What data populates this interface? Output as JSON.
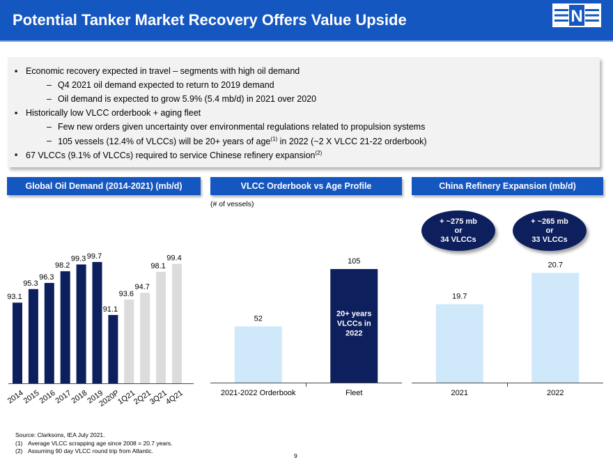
{
  "header": {
    "title": "Potential Tanker Market Recovery Offers Value Upside",
    "logo_letter": "N"
  },
  "bullets": {
    "b1": "Economic recovery expected in travel – segments with high oil demand",
    "b1_sub1": "Q4 2021 oil demand expected to return to 2019 demand",
    "b1_sub2": "Oil demand is expected to grow 5.9% (5.4 mb/d) in 2021 over 2020",
    "b2": "Historically low VLCC orderbook + aging fleet",
    "b2_sub1": "Few new orders given uncertainty over environmental regulations related to propulsion systems",
    "b2_sub2_pre": "105 vessels (12.4% of VLCCs)  will be 20+ years of age",
    "b2_sub2_sup": "(1)",
    "b2_sub2_post": " in 2022 (~2 X VLCC 21-22 orderbook)",
    "b3_pre": "67 VLCCs (9.1% of VLCCs) required to service Chinese refinery expansion",
    "b3_sup": "(2)",
    "bullet_mark": "▪",
    "dash_mark": "–"
  },
  "sections": {
    "oil_demand": "Global Oil Demand (2014-2021) (mb/d)",
    "orderbook": "VLCC Orderbook vs Age Profile",
    "refinery": "China Refinery Expansion (mb/d)"
  },
  "orderbook_note": "(# of vessels)",
  "ovals": [
    {
      "line1": "+ ~275 mb",
      "line2": "or",
      "line3": "34 VLCCs"
    },
    {
      "line1": "+ ~265 mb",
      "line2": "or",
      "line3": "33 VLCCs"
    }
  ],
  "colors": {
    "brand_blue": "#1557c0",
    "navy": "#0d1f5c",
    "light_gray": "#dcdcdc",
    "light_blue": "#cfe9fb"
  },
  "chart_data": [
    {
      "type": "bar",
      "title": "Global Oil Demand (2014-2021) (mb/d)",
      "categories": [
        "2014",
        "2015",
        "2016",
        "2017",
        "2018",
        "2019",
        "2020P",
        "1Q21",
        "2Q21",
        "3Q21",
        "4Q21"
      ],
      "values": [
        93.1,
        95.3,
        96.3,
        98.2,
        99.3,
        99.7,
        91.1,
        93.6,
        94.7,
        98.1,
        99.4
      ],
      "value_labels": [
        "93.1",
        "95.3",
        "96.3",
        "98.2",
        "99.3",
        "99.7",
        "91.1",
        "93.6",
        "94.7",
        "98.1",
        "99.4"
      ],
      "bar_colors": [
        "#0d1f5c",
        "#0d1f5c",
        "#0d1f5c",
        "#0d1f5c",
        "#0d1f5c",
        "#0d1f5c",
        "#0d1f5c",
        "#dcdcdc",
        "#dcdcdc",
        "#dcdcdc",
        "#dcdcdc"
      ],
      "ylim": [
        80,
        101.5
      ],
      "grid": false
    },
    {
      "type": "bar",
      "title": "VLCC Orderbook vs Age Profile",
      "categories": [
        "2021-2022 Orderbook",
        "Fleet"
      ],
      "values": [
        52,
        105
      ],
      "value_labels": [
        "52",
        "105"
      ],
      "bar_colors": [
        "#cfe9fb",
        "#0d1f5c"
      ],
      "inner_labels": [
        "",
        "20+ years VLCCs in 2022"
      ],
      "ylim": [
        0,
        125
      ],
      "grid": false
    },
    {
      "type": "bar",
      "title": "China Refinery Expansion (mb/d)",
      "categories": [
        "2021",
        "2022"
      ],
      "values": [
        19.7,
        20.7
      ],
      "value_labels": [
        "19.7",
        "20.7"
      ],
      "bar_colors": [
        "#cfe9fb",
        "#cfe9fb"
      ],
      "ylim": [
        17.2,
        21.4
      ],
      "grid": false
    }
  ],
  "footnotes": {
    "source": "Source: Clarksons, IEA July 2021.",
    "f1_num": "(1)",
    "f1_text": "Average VLCC scrapping age since 2008 = 20.7 years.",
    "f2_num": "(2)",
    "f2_text": "Assuming 90 day VLCC round trip from Atlantic."
  },
  "page_number": "9"
}
